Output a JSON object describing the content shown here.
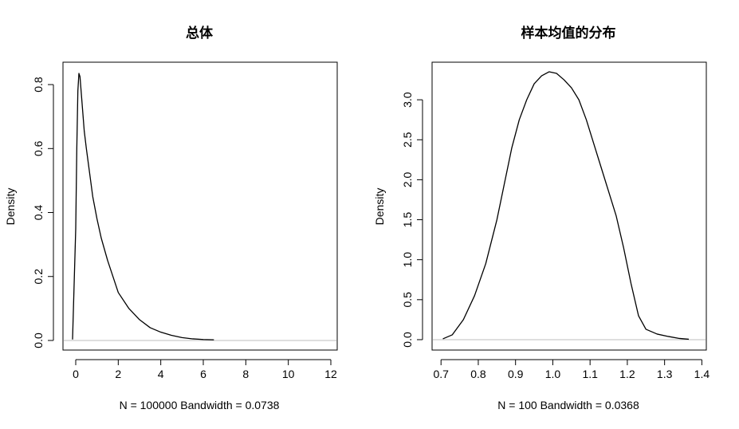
{
  "chart_data": [
    {
      "type": "line",
      "title": "总体",
      "xlabel": "N = 100000   Bandwidth = 0.0738",
      "ylabel": "Density",
      "xlim": [
        -0.6,
        12.3
      ],
      "ylim": [
        -0.03,
        0.87
      ],
      "xticks": [
        0,
        2,
        4,
        6,
        8,
        10,
        12
      ],
      "yticks": [
        0.0,
        0.2,
        0.4,
        0.6,
        0.8
      ],
      "xtick_labels": [
        "0",
        "2",
        "4",
        "6",
        "8",
        "10",
        "12"
      ],
      "ytick_labels": [
        "0.0",
        "0.2",
        "0.4",
        "0.6",
        "0.8"
      ],
      "baseline": 0,
      "series": [
        {
          "x": [
            -0.15,
            0.0,
            0.05,
            0.1,
            0.15,
            0.2,
            0.3,
            0.4,
            0.5,
            0.6,
            0.7,
            0.8,
            1.0,
            1.2,
            1.5,
            2.0,
            2.5,
            3.0,
            3.5,
            4.0,
            4.5,
            5.0,
            5.5,
            6.0,
            6.5
          ],
          "y": [
            0.003,
            0.35,
            0.6,
            0.78,
            0.835,
            0.825,
            0.74,
            0.655,
            0.6,
            0.55,
            0.5,
            0.45,
            0.38,
            0.32,
            0.25,
            0.15,
            0.1,
            0.065,
            0.04,
            0.026,
            0.016,
            0.009,
            0.005,
            0.003,
            0.002
          ]
        }
      ]
    },
    {
      "type": "line",
      "title": "样本均值的分布",
      "xlabel": "N = 100   Bandwidth = 0.0368",
      "ylabel": "Density",
      "xlim": [
        0.676,
        1.412
      ],
      "ylim": [
        -0.13,
        3.47
      ],
      "xticks": [
        0.7,
        0.8,
        0.9,
        1.0,
        1.1,
        1.2,
        1.3,
        1.4
      ],
      "yticks": [
        0.0,
        0.5,
        1.0,
        1.5,
        2.0,
        2.5,
        3.0
      ],
      "xtick_labels": [
        "0.7",
        "0.8",
        "0.9",
        "1.0",
        "1.1",
        "1.2",
        "1.3",
        "1.4"
      ],
      "ytick_labels": [
        "0.0",
        "0.5",
        "1.0",
        "1.5",
        "2.0",
        "2.5",
        "3.0"
      ],
      "baseline": 0,
      "series": [
        {
          "x": [
            0.705,
            0.73,
            0.76,
            0.79,
            0.82,
            0.85,
            0.87,
            0.89,
            0.91,
            0.93,
            0.95,
            0.97,
            0.99,
            1.01,
            1.03,
            1.05,
            1.07,
            1.09,
            1.11,
            1.13,
            1.15,
            1.17,
            1.19,
            1.21,
            1.23,
            1.25,
            1.28,
            1.31,
            1.34,
            1.365
          ],
          "y": [
            0.01,
            0.06,
            0.25,
            0.55,
            0.95,
            1.5,
            1.95,
            2.4,
            2.75,
            3.0,
            3.2,
            3.3,
            3.35,
            3.33,
            3.25,
            3.15,
            3.0,
            2.75,
            2.45,
            2.15,
            1.85,
            1.55,
            1.15,
            0.7,
            0.3,
            0.13,
            0.07,
            0.04,
            0.015,
            0.005
          ]
        }
      ]
    }
  ]
}
